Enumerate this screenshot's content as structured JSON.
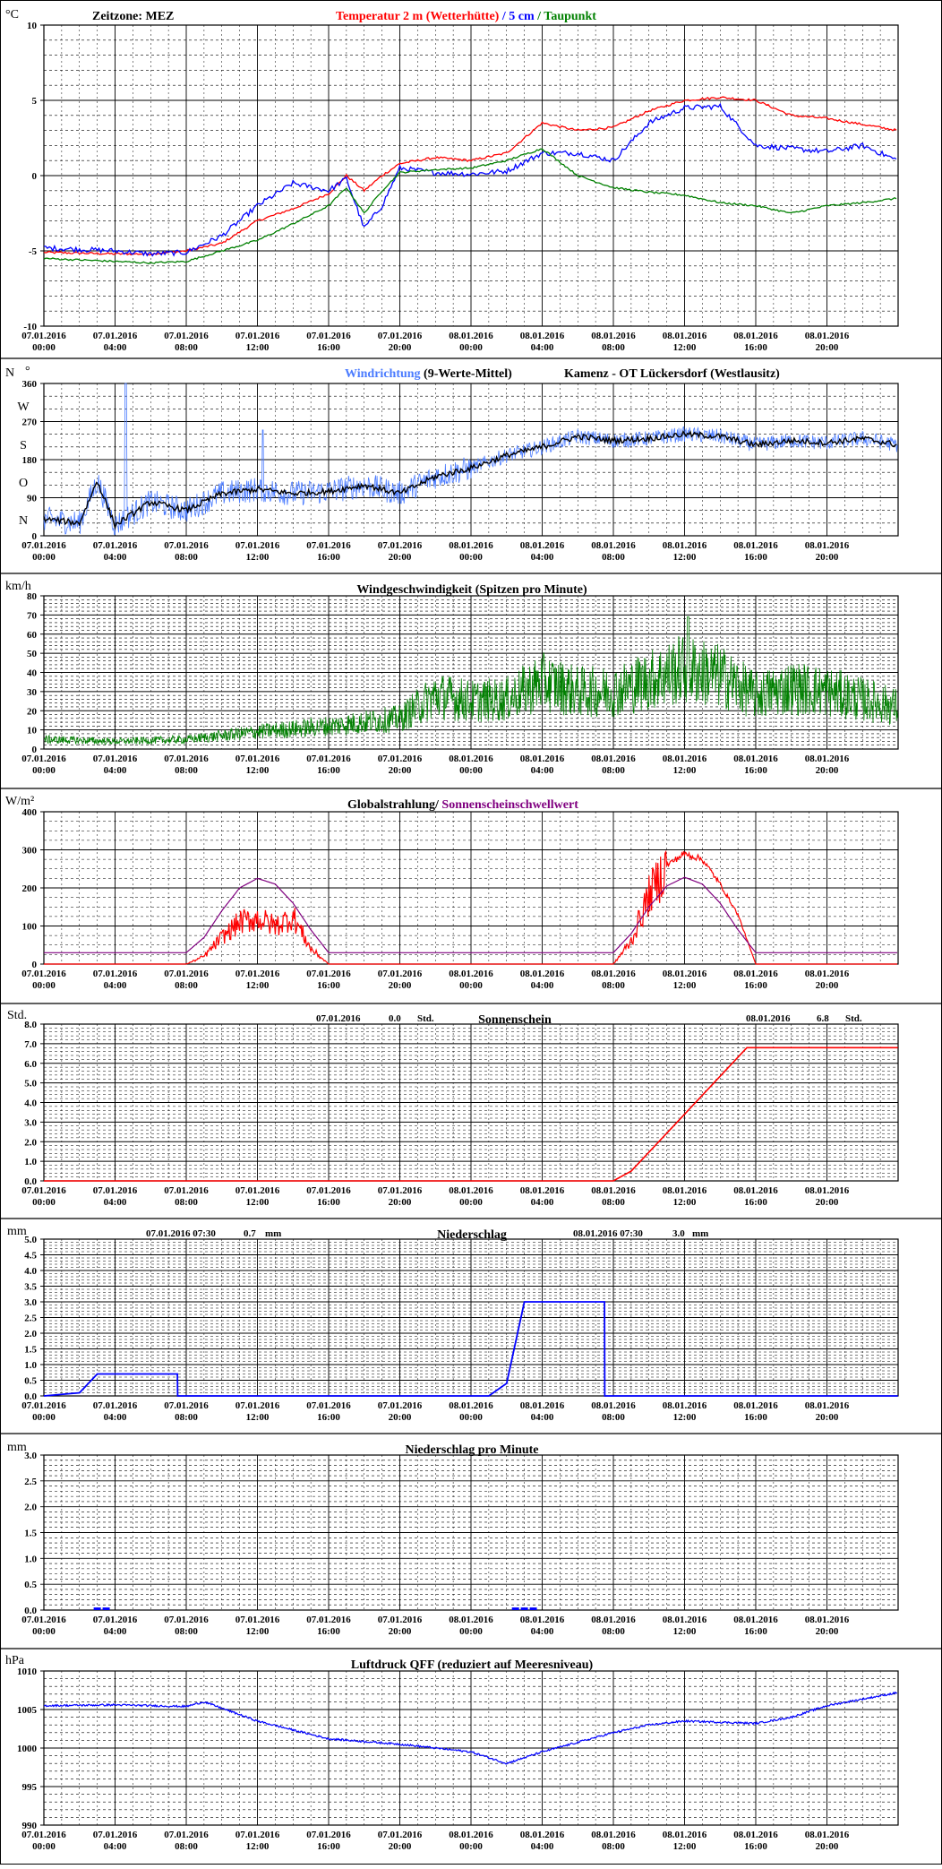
{
  "x_ticks": [
    {
      "date": "07.01.2016",
      "time": "00:00"
    },
    {
      "date": "07.01.2016",
      "time": "04:00"
    },
    {
      "date": "07.01.2016",
      "time": "08:00"
    },
    {
      "date": "07.01.2016",
      "time": "12:00"
    },
    {
      "date": "07.01.2016",
      "time": "16:00"
    },
    {
      "date": "07.01.2016",
      "time": "20:00"
    },
    {
      "date": "08.01.2016",
      "time": "00:00"
    },
    {
      "date": "08.01.2016",
      "time": "04:00"
    },
    {
      "date": "08.01.2016",
      "time": "08:00"
    },
    {
      "date": "08.01.2016",
      "time": "12:00"
    },
    {
      "date": "08.01.2016",
      "time": "16:00"
    },
    {
      "date": "08.01.2016",
      "time": "20:00"
    }
  ],
  "colors": {
    "temp2m": "#ff0000",
    "temp5cm": "#0000ff",
    "dewpoint": "#008000",
    "winddir": "#4a7bff",
    "wind_mean": "#000000",
    "wind": "#008000",
    "radiation": "#ff0000",
    "threshold": "#800080",
    "sunshine": "#ff0000",
    "precip": "#0000ff",
    "pressure": "#0000ff"
  },
  "panels": {
    "temp": {
      "unit": "°C",
      "timezone": "Zeitzone: MEZ",
      "title_a": "Temperatur 2 m (Wetterhütte)",
      "title_sep": " / ",
      "title_b": "5 cm",
      "title_sep2": " / ",
      "title_c": "Taupunkt",
      "y_ticks": [
        "10",
        "5",
        "0",
        "-5",
        "-10"
      ]
    },
    "winddir": {
      "unit": "N",
      "unit2": "°",
      "title_a": "Windrichtung",
      "title_b": " (9-Werte-Mittel)",
      "title_c": "Kamenz - OT Lückersdorf (Westlausitz)",
      "y_ticks": [
        "360",
        "270",
        "180",
        "90",
        "0"
      ],
      "y_letters": [
        "W",
        "S",
        "O",
        "N"
      ]
    },
    "wind": {
      "unit": "km/h",
      "title": "Windgeschwindigkeit (Spitzen pro Minute)",
      "y_ticks": [
        "80",
        "70",
        "60",
        "50",
        "40",
        "30",
        "20",
        "10",
        "0"
      ]
    },
    "rad": {
      "unit": "W/m²",
      "title_a": "Globalstrahlung/ ",
      "title_b": "Sonnenscheinschwellwert",
      "y_ticks": [
        "400",
        "300",
        "200",
        "100",
        "0"
      ]
    },
    "sun": {
      "unit": "Std.",
      "title": "Sonnenschein",
      "d1": "07.01.2016",
      "v1": "0.0",
      "u1": "Std.",
      "d2": "08.01.2016",
      "v2": "6.8",
      "u2": "Std.",
      "y_ticks": [
        "8.0",
        "7.0",
        "6.0",
        "5.0",
        "4.0",
        "3.0",
        "2.0",
        "1.0",
        "0.0"
      ]
    },
    "precip": {
      "unit": "mm",
      "title": "Niederschlag",
      "d1": "07.01.2016 07:30",
      "v1": "0.7",
      "u1": "mm",
      "d2": "08.01.2016 07:30",
      "v2": "3.0",
      "u2": "mm",
      "y_ticks": [
        "5.0",
        "4.5",
        "4.0",
        "3.5",
        "3.0",
        "2.5",
        "2.0",
        "1.5",
        "1.0",
        "0.5",
        "0.0"
      ]
    },
    "precipmin": {
      "unit": "mm",
      "title": "Niederschlag pro Minute",
      "y_ticks": [
        "3.0",
        "2.5",
        "2.0",
        "1.5",
        "1.0",
        "0.5",
        "0.0"
      ]
    },
    "pressure": {
      "unit": "hPa",
      "title": "Luftdruck QFF (reduziert auf Meeresniveau)",
      "y_ticks": [
        "1010",
        "1005",
        "1000",
        "995",
        "990"
      ]
    }
  },
  "chart_data": [
    {
      "type": "line",
      "title": "Temperatur 2 m (Wetterhütte) / 5 cm / Taupunkt",
      "ylabel": "°C",
      "ylim": [
        -10,
        10
      ],
      "x": [
        "07.01.2016 00:00",
        "07.01.2016 04:00",
        "07.01.2016 06:00",
        "07.01.2016 08:00",
        "07.01.2016 10:00",
        "07.01.2016 12:00",
        "07.01.2016 14:00",
        "07.01.2016 16:00",
        "07.01.2016 17:00",
        "07.01.2016 18:00",
        "07.01.2016 19:00",
        "07.01.2016 20:00",
        "07.01.2016 22:00",
        "08.01.2016 00:00",
        "08.01.2016 02:00",
        "08.01.2016 04:00",
        "08.01.2016 06:00",
        "08.01.2016 08:00",
        "08.01.2016 10:00",
        "08.01.2016 12:00",
        "08.01.2016 14:00",
        "08.01.2016 16:00",
        "08.01.2016 18:00",
        "08.01.2016 20:00",
        "08.01.2016 22:00",
        "08.01.2016 23:59"
      ],
      "series": [
        {
          "name": "Temperatur 2 m (Wetterhütte)",
          "values": [
            -5.1,
            -5.2,
            -5.2,
            -5.0,
            -4.5,
            -3.0,
            -2.2,
            -1.2,
            0.0,
            -1.0,
            0.0,
            0.8,
            1.2,
            1.0,
            1.5,
            3.5,
            3.0,
            3.2,
            4.3,
            5.0,
            5.2,
            5.0,
            4.0,
            3.8,
            3.4,
            3.0
          ]
        },
        {
          "name": "5 cm",
          "values": [
            -4.8,
            -5.0,
            -5.2,
            -5.1,
            -4.0,
            -2.0,
            -0.5,
            -1.0,
            -0.2,
            -3.5,
            -2.0,
            0.5,
            0.2,
            0.1,
            0.3,
            1.5,
            1.5,
            1.0,
            3.5,
            4.5,
            4.6,
            2.0,
            1.8,
            1.6,
            2.0,
            1.0
          ]
        },
        {
          "name": "Taupunkt",
          "values": [
            -5.5,
            -5.7,
            -5.8,
            -5.7,
            -5.0,
            -4.3,
            -3.2,
            -2.0,
            -0.8,
            -2.5,
            -1.0,
            0.2,
            0.4,
            0.5,
            1.0,
            1.8,
            0.0,
            -0.8,
            -1.1,
            -1.3,
            -1.8,
            -2.0,
            -2.5,
            -2.0,
            -1.8,
            -1.5
          ]
        }
      ]
    },
    {
      "type": "line",
      "title": "Windrichtung (9-Werte-Mittel)",
      "ylabel": "°",
      "ylim": [
        0,
        360
      ],
      "x": [
        "07.01.2016 00:00",
        "07.01.2016 02:00",
        "07.01.2016 03:00",
        "07.01.2016 04:00",
        "07.01.2016 06:00",
        "07.01.2016 08:00",
        "07.01.2016 10:00",
        "07.01.2016 12:00",
        "07.01.2016 14:00",
        "07.01.2016 16:00",
        "07.01.2016 18:00",
        "07.01.2016 20:00",
        "07.01.2016 22:00",
        "08.01.2016 00:00",
        "08.01.2016 02:00",
        "08.01.2016 04:00",
        "08.01.2016 06:00",
        "08.01.2016 08:00",
        "08.01.2016 10:00",
        "08.01.2016 12:00",
        "08.01.2016 14:00",
        "08.01.2016 16:00",
        "08.01.2016 18:00",
        "08.01.2016 20:00",
        "08.01.2016 22:00",
        "08.01.2016 23:59"
      ],
      "series": [
        {
          "name": "Windrichtung",
          "values": [
            40,
            30,
            130,
            25,
            80,
            60,
            100,
            110,
            100,
            105,
            120,
            100,
            140,
            160,
            190,
            210,
            235,
            225,
            230,
            240,
            235,
            215,
            225,
            220,
            230,
            215
          ]
        }
      ]
    },
    {
      "type": "line",
      "title": "Windgeschwindigkeit (Spitzen pro Minute)",
      "ylabel": "km/h",
      "ylim": [
        0,
        80
      ],
      "x": [
        "07.01.2016 00:00",
        "07.01.2016 04:00",
        "07.01.2016 08:00",
        "07.01.2016 12:00",
        "07.01.2016 16:00",
        "07.01.2016 20:00",
        "07.01.2016 22:00",
        "08.01.2016 00:00",
        "08.01.2016 02:00",
        "08.01.2016 04:00",
        "08.01.2016 06:00",
        "08.01.2016 08:00",
        "08.01.2016 10:00",
        "08.01.2016 12:00",
        "08.01.2016 14:00",
        "08.01.2016 16:00",
        "08.01.2016 18:00",
        "08.01.2016 20:00",
        "08.01.2016 23:59"
      ],
      "series": [
        {
          "name": "Windgeschwindigkeit",
          "values": [
            5,
            4,
            5,
            9,
            12,
            16,
            28,
            25,
            26,
            35,
            30,
            30,
            36,
            42,
            38,
            28,
            32,
            30,
            22
          ]
        }
      ]
    },
    {
      "type": "line",
      "title": "Globalstrahlung/ Sonnenscheinschwellwert",
      "ylabel": "W/m²",
      "ylim": [
        0,
        400
      ],
      "x": [
        "07.01.2016 00:00",
        "07.01.2016 08:00",
        "07.01.2016 09:00",
        "07.01.2016 10:00",
        "07.01.2016 11:00",
        "07.01.2016 12:00",
        "07.01.2016 13:00",
        "07.01.2016 14:00",
        "07.01.2016 15:00",
        "07.01.2016 16:00",
        "08.01.2016 08:00",
        "08.01.2016 09:00",
        "08.01.2016 10:00",
        "08.01.2016 11:00",
        "08.01.2016 12:00",
        "08.01.2016 13:00",
        "08.01.2016 14:00",
        "08.01.2016 15:00",
        "08.01.2016 16:00",
        "08.01.2016 23:59"
      ],
      "series": [
        {
          "name": "Globalstrahlung",
          "values": [
            0,
            0,
            20,
            70,
            110,
            120,
            100,
            125,
            40,
            0,
            0,
            60,
            180,
            260,
            290,
            275,
            210,
            130,
            0,
            0
          ]
        },
        {
          "name": "Sonnenscheinschwellwert",
          "values": [
            30,
            30,
            70,
            140,
            200,
            225,
            210,
            160,
            90,
            30,
            30,
            80,
            150,
            205,
            228,
            210,
            160,
            90,
            30,
            30
          ]
        }
      ]
    },
    {
      "type": "line",
      "title": "Sonnenschein",
      "ylabel": "Std.",
      "ylim": [
        0,
        8
      ],
      "x": [
        "07.01.2016 00:00",
        "08.01.2016 08:00",
        "08.01.2016 09:00",
        "08.01.2016 12:00",
        "08.01.2016 15:30",
        "08.01.2016 23:59"
      ],
      "series": [
        {
          "name": "Sonnenschein",
          "values": [
            0,
            0,
            0.5,
            3.4,
            6.8,
            6.8
          ]
        }
      ]
    },
    {
      "type": "line",
      "title": "Niederschlag",
      "ylabel": "mm",
      "ylim": [
        0,
        5
      ],
      "x": [
        "07.01.2016 00:00",
        "07.01.2016 02:00",
        "07.01.2016 03:00",
        "07.01.2016 07:30",
        "07.01.2016 07:31",
        "08.01.2016 01:00",
        "08.01.2016 02:00",
        "08.01.2016 03:00",
        "08.01.2016 07:30",
        "08.01.2016 07:31",
        "08.01.2016 23:59"
      ],
      "series": [
        {
          "name": "Niederschlag",
          "values": [
            0,
            0.1,
            0.7,
            0.7,
            0,
            0,
            0.4,
            3.0,
            3.0,
            0,
            0
          ]
        }
      ]
    },
    {
      "type": "bar",
      "title": "Niederschlag pro Minute",
      "ylabel": "mm",
      "ylim": [
        0,
        3
      ],
      "x": [
        "07.01.2016 03:00",
        "07.01.2016 03:30",
        "08.01.2016 02:30",
        "08.01.2016 03:00",
        "08.01.2016 03:30"
      ],
      "series": [
        {
          "name": "Niederschlag pro Minute",
          "values": [
            0.05,
            0.05,
            0.05,
            0.05,
            0.05
          ]
        }
      ]
    },
    {
      "type": "line",
      "title": "Luftdruck QFF (reduziert auf Meeresniveau)",
      "ylabel": "hPa",
      "ylim": [
        990,
        1010
      ],
      "x": [
        "07.01.2016 00:00",
        "07.01.2016 04:00",
        "07.01.2016 08:00",
        "07.01.2016 09:00",
        "07.01.2016 12:00",
        "07.01.2016 16:00",
        "07.01.2016 20:00",
        "08.01.2016 00:00",
        "08.01.2016 02:00",
        "08.01.2016 04:00",
        "08.01.2016 08:00",
        "08.01.2016 10:00",
        "08.01.2016 12:00",
        "08.01.2016 16:00",
        "08.01.2016 18:00",
        "08.01.2016 20:00",
        "08.01.2016 23:59"
      ],
      "series": [
        {
          "name": "Luftdruck QFF",
          "values": [
            1005.5,
            1005.6,
            1005.4,
            1006.0,
            1003.5,
            1001.2,
            1000.5,
            999.5,
            998.0,
            999.5,
            1002.0,
            1003.0,
            1003.5,
            1003.2,
            1004.0,
            1005.5,
            1007.2
          ]
        }
      ]
    }
  ]
}
